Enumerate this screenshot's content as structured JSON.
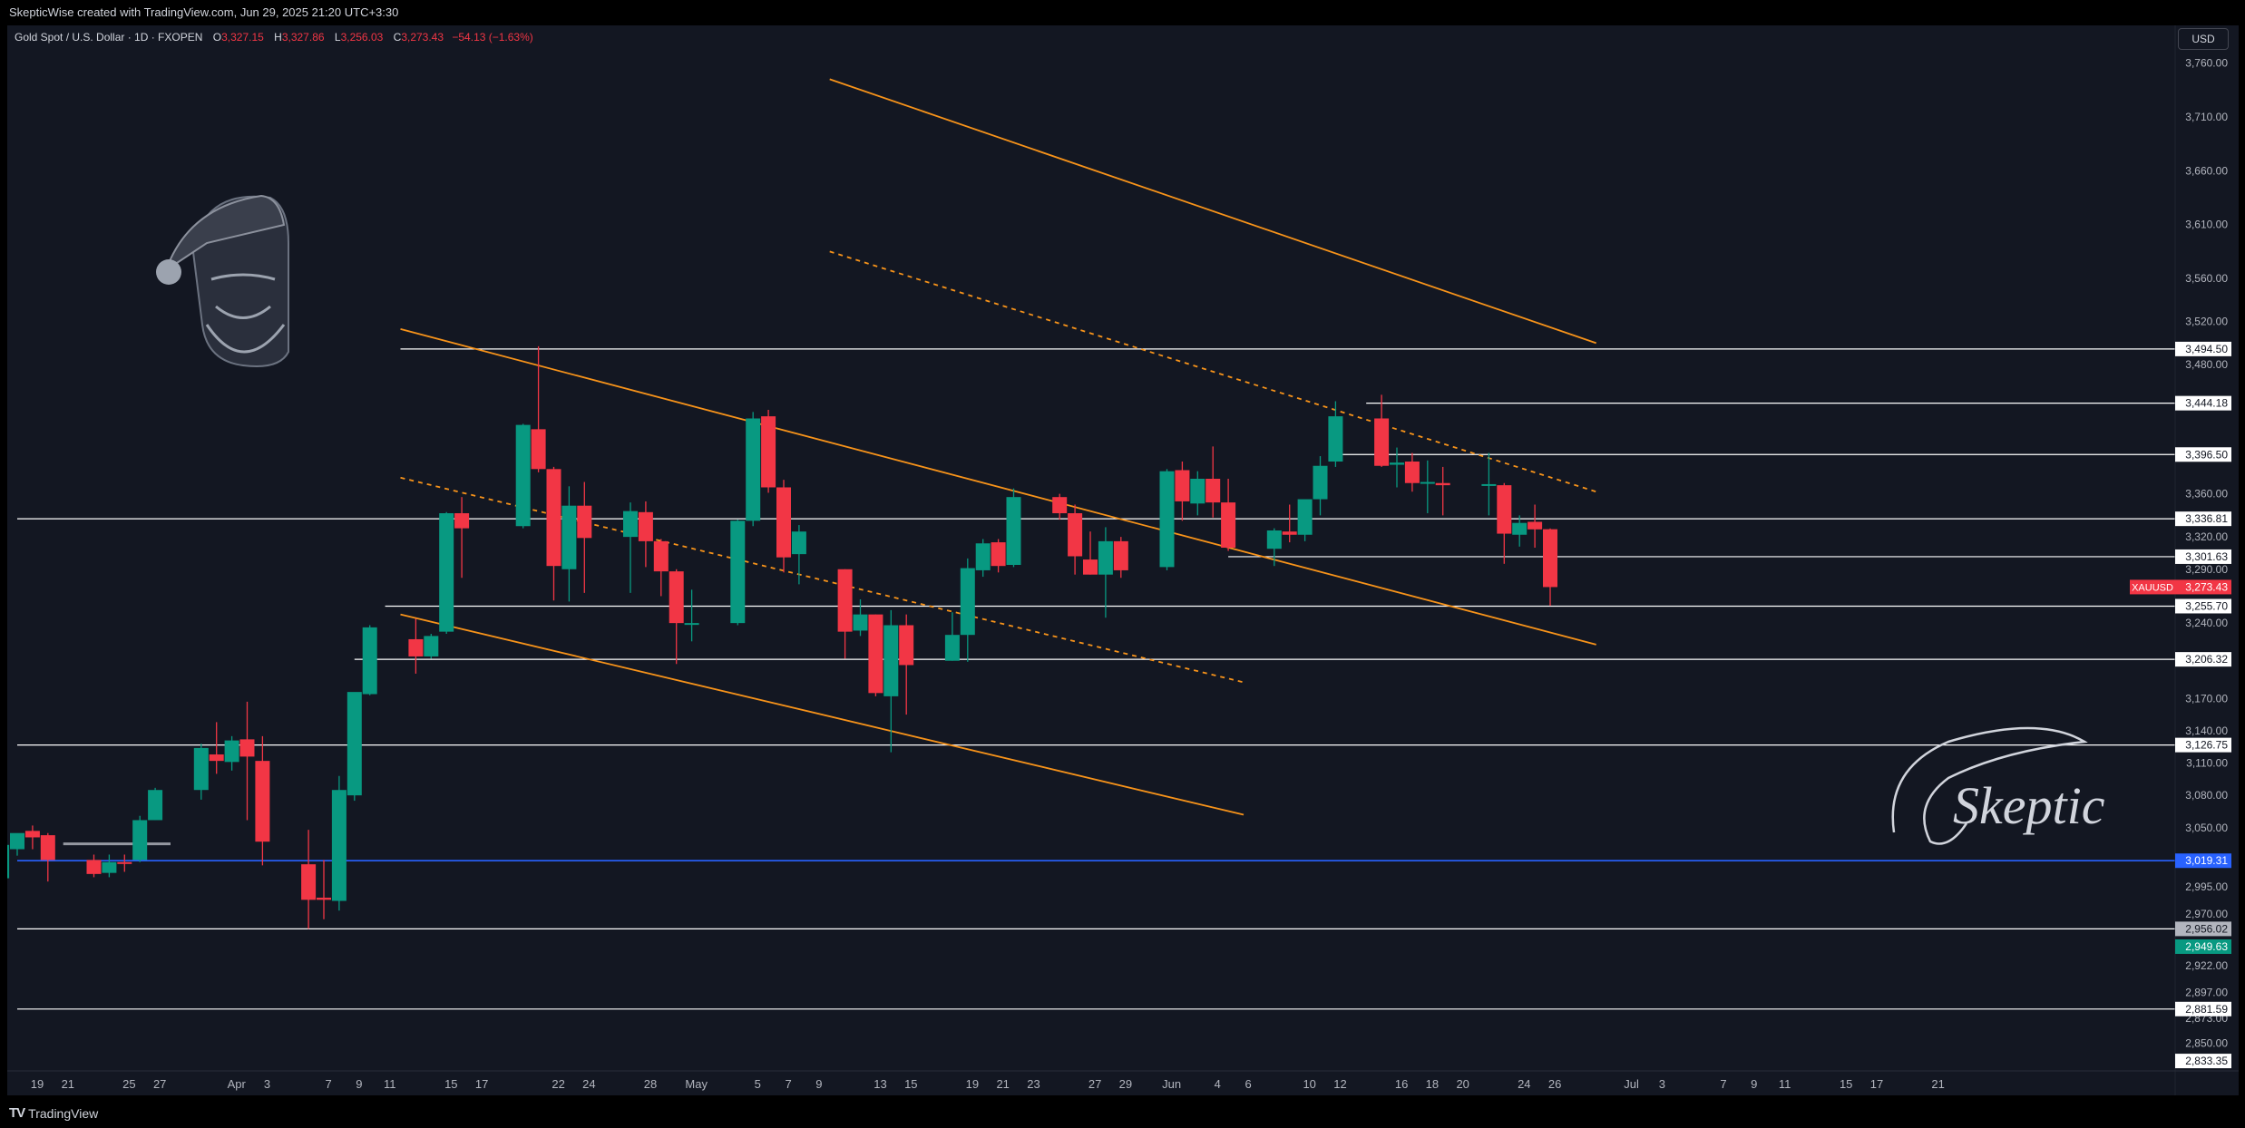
{
  "header": {
    "attribution": "SkepticWise created with TradingView.com, Jun 29, 2025 21:20 UTC+3:30"
  },
  "footer": {
    "brand": "TradingView"
  },
  "legend": {
    "title": "Gold Spot / U.S. Dollar · 1D · FXOPEN",
    "o_label": "O",
    "o_value": "3,327.15",
    "h_label": "H",
    "h_value": "3,327.86",
    "l_label": "L",
    "l_value": "3,256.03",
    "c_label": "C",
    "c_value": "3,273.43",
    "change": "−54.13 (−1.63%)"
  },
  "currency": "USD",
  "watermark": {
    "text": "Skeptic"
  },
  "colors": {
    "background": "#131722",
    "up": "#089981",
    "down": "#f23645",
    "trendline": "#f7931a",
    "level": "#ffffff",
    "blue_level": "#2962ff",
    "axis_text": "#b2b5be"
  },
  "chart_data": {
    "type": "candlestick",
    "symbol": "XAUUSD",
    "interval": "1D",
    "ylim": [
      2825,
      3795
    ],
    "y_ticks": [
      2850,
      2873,
      2897,
      2922,
      2970,
      2995,
      3050,
      3080,
      3110,
      3140,
      3170,
      3240,
      3290,
      3320,
      3360,
      3480,
      3520,
      3560,
      3610,
      3660,
      3710,
      3760
    ],
    "y_tick_labels": [
      "2,850.00",
      "2,873.00",
      "2,897.00",
      "2,922.00",
      "2,970.00",
      "2,995.00",
      "3,050.00",
      "3,080.00",
      "3,110.00",
      "3,140.00",
      "3,170.00",
      "3,240.00",
      "3,290.00",
      "3,320.00",
      "3,360.00",
      "3,480.00",
      "3,520.00",
      "3,560.00",
      "3,610.00",
      "3,660.00",
      "3,710.00",
      "3,760.00"
    ],
    "x_ticks": [
      {
        "label": "19",
        "day": 0
      },
      {
        "label": "21",
        "day": 2
      },
      {
        "label": "25",
        "day": 6
      },
      {
        "label": "27",
        "day": 8
      },
      {
        "label": "Apr",
        "day": 13
      },
      {
        "label": "3",
        "day": 15
      },
      {
        "label": "7",
        "day": 19
      },
      {
        "label": "9",
        "day": 21
      },
      {
        "label": "11",
        "day": 23
      },
      {
        "label": "15",
        "day": 27
      },
      {
        "label": "17",
        "day": 29
      },
      {
        "label": "22",
        "day": 34
      },
      {
        "label": "24",
        "day": 36
      },
      {
        "label": "28",
        "day": 40
      },
      {
        "label": "May",
        "day": 43
      },
      {
        "label": "5",
        "day": 47
      },
      {
        "label": "7",
        "day": 49
      },
      {
        "label": "9",
        "day": 51
      },
      {
        "label": "13",
        "day": 55
      },
      {
        "label": "15",
        "day": 57
      },
      {
        "label": "19",
        "day": 61
      },
      {
        "label": "21",
        "day": 63
      },
      {
        "label": "23",
        "day": 65
      },
      {
        "label": "27",
        "day": 69
      },
      {
        "label": "29",
        "day": 71
      },
      {
        "label": "Jun",
        "day": 74
      },
      {
        "label": "4",
        "day": 77
      },
      {
        "label": "6",
        "day": 79
      },
      {
        "label": "10",
        "day": 83
      },
      {
        "label": "12",
        "day": 85
      },
      {
        "label": "16",
        "day": 89
      },
      {
        "label": "18",
        "day": 91
      },
      {
        "label": "20",
        "day": 93
      },
      {
        "label": "24",
        "day": 97
      },
      {
        "label": "26",
        "day": 99
      },
      {
        "label": "Jul",
        "day": 104
      },
      {
        "label": "3",
        "day": 106
      },
      {
        "label": "7",
        "day": 110
      },
      {
        "label": "9",
        "day": 112
      },
      {
        "label": "11",
        "day": 114
      },
      {
        "label": "15",
        "day": 118
      },
      {
        "label": "17",
        "day": 120
      },
      {
        "label": "21",
        "day": 124
      }
    ],
    "candles": [
      {
        "d": "Mar 18",
        "o": 3003,
        "h": 3038,
        "l": 3000,
        "c": 3034
      },
      {
        "d": "Mar 19",
        "o": 3030,
        "h": 3044,
        "l": 3024,
        "c": 3045
      },
      {
        "d": "Mar 20",
        "o": 3047,
        "h": 3052,
        "l": 3030,
        "c": 3041
      },
      {
        "d": "Mar 21",
        "o": 3043,
        "h": 3045,
        "l": 3000,
        "c": 3020
      },
      {
        "d": "Mar 24",
        "o": 3020,
        "h": 3025,
        "l": 3004,
        "c": 3007
      },
      {
        "d": "Mar 25",
        "o": 3008,
        "h": 3025,
        "l": 3004,
        "c": 3018
      },
      {
        "d": "Mar 26",
        "o": 3018,
        "h": 3025,
        "l": 3009,
        "c": 3017
      },
      {
        "d": "Mar 27",
        "o": 3020,
        "h": 3061,
        "l": 3018,
        "c": 3057
      },
      {
        "d": "Mar 28",
        "o": 3057,
        "h": 3087,
        "l": 3057,
        "c": 3085
      },
      {
        "d": "Mar 31",
        "o": 3085,
        "h": 3128,
        "l": 3076,
        "c": 3124
      },
      {
        "d": "Apr 1",
        "o": 3118,
        "h": 3148,
        "l": 3100,
        "c": 3112
      },
      {
        "d": "Apr 2",
        "o": 3111,
        "h": 3135,
        "l": 3103,
        "c": 3131
      },
      {
        "d": "Apr 3",
        "o": 3132,
        "h": 3167,
        "l": 3057,
        "c": 3116
      },
      {
        "d": "Apr 4",
        "o": 3112,
        "h": 3135,
        "l": 3015,
        "c": 3037
      },
      {
        "d": "Apr 7",
        "o": 3016,
        "h": 3048,
        "l": 2956,
        "c": 2983
      },
      {
        "d": "Apr 8",
        "o": 2985,
        "h": 3020,
        "l": 2965,
        "c": 2983
      },
      {
        "d": "Apr 9",
        "o": 2982,
        "h": 3098,
        "l": 2973,
        "c": 3085
      },
      {
        "d": "Apr 10",
        "o": 3080,
        "h": 3175,
        "l": 3075,
        "c": 3176
      },
      {
        "d": "Apr 11",
        "o": 3174,
        "h": 3238,
        "l": 3173,
        "c": 3236
      },
      {
        "d": "Apr 14",
        "o": 3225,
        "h": 3244,
        "l": 3193,
        "c": 3209
      },
      {
        "d": "Apr 15",
        "o": 3209,
        "h": 3230,
        "l": 3207,
        "c": 3228
      },
      {
        "d": "Apr 16",
        "o": 3232,
        "h": 3343,
        "l": 3230,
        "c": 3342
      },
      {
        "d": "Apr 17",
        "o": 3342,
        "h": 3357,
        "l": 3282,
        "c": 3328
      },
      {
        "d": "Apr 21",
        "o": 3330,
        "h": 3425,
        "l": 3328,
        "c": 3424
      },
      {
        "d": "Apr 22",
        "o": 3420,
        "h": 3497,
        "l": 3380,
        "c": 3383
      },
      {
        "d": "Apr 23",
        "o": 3383,
        "h": 3385,
        "l": 3261,
        "c": 3293
      },
      {
        "d": "Apr 24",
        "o": 3290,
        "h": 3367,
        "l": 3260,
        "c": 3349
      },
      {
        "d": "Apr 25",
        "o": 3349,
        "h": 3371,
        "l": 3268,
        "c": 3319
      },
      {
        "d": "Apr 28",
        "o": 3320,
        "h": 3352,
        "l": 3268,
        "c": 3344
      },
      {
        "d": "Apr 29",
        "o": 3343,
        "h": 3353,
        "l": 3292,
        "c": 3316
      },
      {
        "d": "Apr 30",
        "o": 3316,
        "h": 3318,
        "l": 3265,
        "c": 3288
      },
      {
        "d": "May 1",
        "o": 3288,
        "h": 3290,
        "l": 3202,
        "c": 3240
      },
      {
        "d": "May 2",
        "o": 3240,
        "h": 3271,
        "l": 3223,
        "c": 3240
      },
      {
        "d": "May 5",
        "o": 3240,
        "h": 3336,
        "l": 3238,
        "c": 3335
      },
      {
        "d": "May 6",
        "o": 3335,
        "h": 3436,
        "l": 3330,
        "c": 3430
      },
      {
        "d": "May 7",
        "o": 3432,
        "h": 3438,
        "l": 3361,
        "c": 3366
      },
      {
        "d": "May 8",
        "o": 3366,
        "h": 3373,
        "l": 3287,
        "c": 3301
      },
      {
        "d": "May 9",
        "o": 3304,
        "h": 3331,
        "l": 3276,
        "c": 3325
      },
      {
        "d": "May 12",
        "o": 3290,
        "h": 3290,
        "l": 3207,
        "c": 3232
      },
      {
        "d": "May 13",
        "o": 3233,
        "h": 3262,
        "l": 3228,
        "c": 3248
      },
      {
        "d": "May 14",
        "o": 3248,
        "h": 3248,
        "l": 3172,
        "c": 3175
      },
      {
        "d": "May 15",
        "o": 3172,
        "h": 3252,
        "l": 3120,
        "c": 3238
      },
      {
        "d": "May 16",
        "o": 3238,
        "h": 3248,
        "l": 3155,
        "c": 3201
      },
      {
        "d": "May 19",
        "o": 3205,
        "h": 3250,
        "l": 3205,
        "c": 3229
      },
      {
        "d": "May 20",
        "o": 3229,
        "h": 3300,
        "l": 3204,
        "c": 3291
      },
      {
        "d": "May 21",
        "o": 3289,
        "h": 3318,
        "l": 3283,
        "c": 3314
      },
      {
        "d": "May 22",
        "o": 3315,
        "h": 3318,
        "l": 3287,
        "c": 3293
      },
      {
        "d": "May 23",
        "o": 3294,
        "h": 3365,
        "l": 3292,
        "c": 3357
      },
      {
        "d": "May 26",
        "o": 3357,
        "h": 3360,
        "l": 3336,
        "c": 3342
      },
      {
        "d": "May 27",
        "o": 3342,
        "h": 3350,
        "l": 3285,
        "c": 3302
      },
      {
        "d": "May 28",
        "o": 3299,
        "h": 3325,
        "l": 3285,
        "c": 3285
      },
      {
        "d": "May 29",
        "o": 3285,
        "h": 3329,
        "l": 3245,
        "c": 3316
      },
      {
        "d": "May 30",
        "o": 3316,
        "h": 3320,
        "l": 3282,
        "c": 3289
      },
      {
        "d": "Jun 2",
        "o": 3292,
        "h": 3383,
        "l": 3289,
        "c": 3381
      },
      {
        "d": "Jun 3",
        "o": 3382,
        "h": 3390,
        "l": 3335,
        "c": 3353
      },
      {
        "d": "Jun 4",
        "o": 3351,
        "h": 3381,
        "l": 3340,
        "c": 3374
      },
      {
        "d": "Jun 5",
        "o": 3374,
        "h": 3404,
        "l": 3338,
        "c": 3352
      },
      {
        "d": "Jun 6",
        "o": 3352,
        "h": 3374,
        "l": 3307,
        "c": 3310
      },
      {
        "d": "Jun 9",
        "o": 3309,
        "h": 3328,
        "l": 3293,
        "c": 3326
      },
      {
        "d": "Jun 10",
        "o": 3325,
        "h": 3350,
        "l": 3315,
        "c": 3322
      },
      {
        "d": "Jun 11",
        "o": 3322,
        "h": 3348,
        "l": 3316,
        "c": 3355
      },
      {
        "d": "Jun 12",
        "o": 3355,
        "h": 3395,
        "l": 3340,
        "c": 3386
      },
      {
        "d": "Jun 13",
        "o": 3390,
        "h": 3446,
        "l": 3385,
        "c": 3432
      },
      {
        "d": "Jun 16",
        "o": 3430,
        "h": 3452,
        "l": 3385,
        "c": 3386
      },
      {
        "d": "Jun 17",
        "o": 3387,
        "h": 3403,
        "l": 3366,
        "c": 3389
      },
      {
        "d": "Jun 18",
        "o": 3390,
        "h": 3398,
        "l": 3362,
        "c": 3370
      },
      {
        "d": "Jun 19",
        "o": 3370,
        "h": 3391,
        "l": 3342,
        "c": 3371
      },
      {
        "d": "Jun 20",
        "o": 3370,
        "h": 3385,
        "l": 3340,
        "c": 3368
      },
      {
        "d": "Jun 23",
        "o": 3368,
        "h": 3398,
        "l": 3340,
        "c": 3369
      },
      {
        "d": "Jun 24",
        "o": 3368,
        "h": 3370,
        "l": 3295,
        "c": 3323
      },
      {
        "d": "Jun 25",
        "o": 3322,
        "h": 3340,
        "l": 3311,
        "c": 3333
      },
      {
        "d": "Jun 26",
        "o": 3334,
        "h": 3350,
        "l": 3310,
        "c": 3327
      },
      {
        "d": "Jun 27",
        "o": 3327.15,
        "h": 3327.86,
        "l": 3256.03,
        "c": 3273.43
      }
    ],
    "horizontal_levels": [
      {
        "value": 3494.5,
        "label": "3,494.50",
        "from_day": 25
      },
      {
        "value": 3444.18,
        "label": "3,444.18",
        "from_day": 88
      },
      {
        "value": 3396.5,
        "label": "3,396.50",
        "from_day": 86
      },
      {
        "value": 3336.81,
        "label": "3,336.81",
        "from_day": 0
      },
      {
        "value": 3301.63,
        "label": "3,301.63",
        "from_day": 79
      },
      {
        "value": 3255.7,
        "label": "3,255.70",
        "from_day": 24
      },
      {
        "value": 3206.32,
        "label": "3,206.32",
        "from_day": 22
      },
      {
        "value": 3126.75,
        "label": "3,126.75",
        "from_day": 0
      },
      {
        "value": 3019.31,
        "label": "3,019.31",
        "from_day": 0,
        "color": "blue"
      },
      {
        "value": 2956.02,
        "label": "2,956.02",
        "from_day": 0
      },
      {
        "value": 2881.59,
        "label": "2,881.59",
        "from_day": 0
      }
    ],
    "extra_labels": [
      {
        "value": 2949.63,
        "label": "2,949.63",
        "kind": "green"
      },
      {
        "value": 2833.35,
        "label": "2,833.35",
        "kind": "plain"
      }
    ],
    "price_marker": {
      "symbol": "XAUUSD",
      "value": 3273.43,
      "label": "3,273.43"
    },
    "trendlines": [
      {
        "x1": 53,
        "y1": 3745,
        "x2": 103,
        "y2": 3500,
        "style": "solid"
      },
      {
        "x1": 53,
        "y1": 3585,
        "x2": 103,
        "y2": 3362,
        "style": "dashed"
      },
      {
        "x1": 25,
        "y1": 3513,
        "x2": 103,
        "y2": 3220,
        "style": "solid"
      },
      {
        "x1": 25,
        "y1": 3375,
        "x2": 80,
        "y2": 3185,
        "style": "dashed"
      },
      {
        "x1": 25,
        "y1": 3248,
        "x2": 80,
        "y2": 3062,
        "style": "solid"
      },
      {
        "x1": 3,
        "y1": 3035,
        "x2": 10,
        "y2": 3035,
        "style": "gray"
      }
    ]
  }
}
